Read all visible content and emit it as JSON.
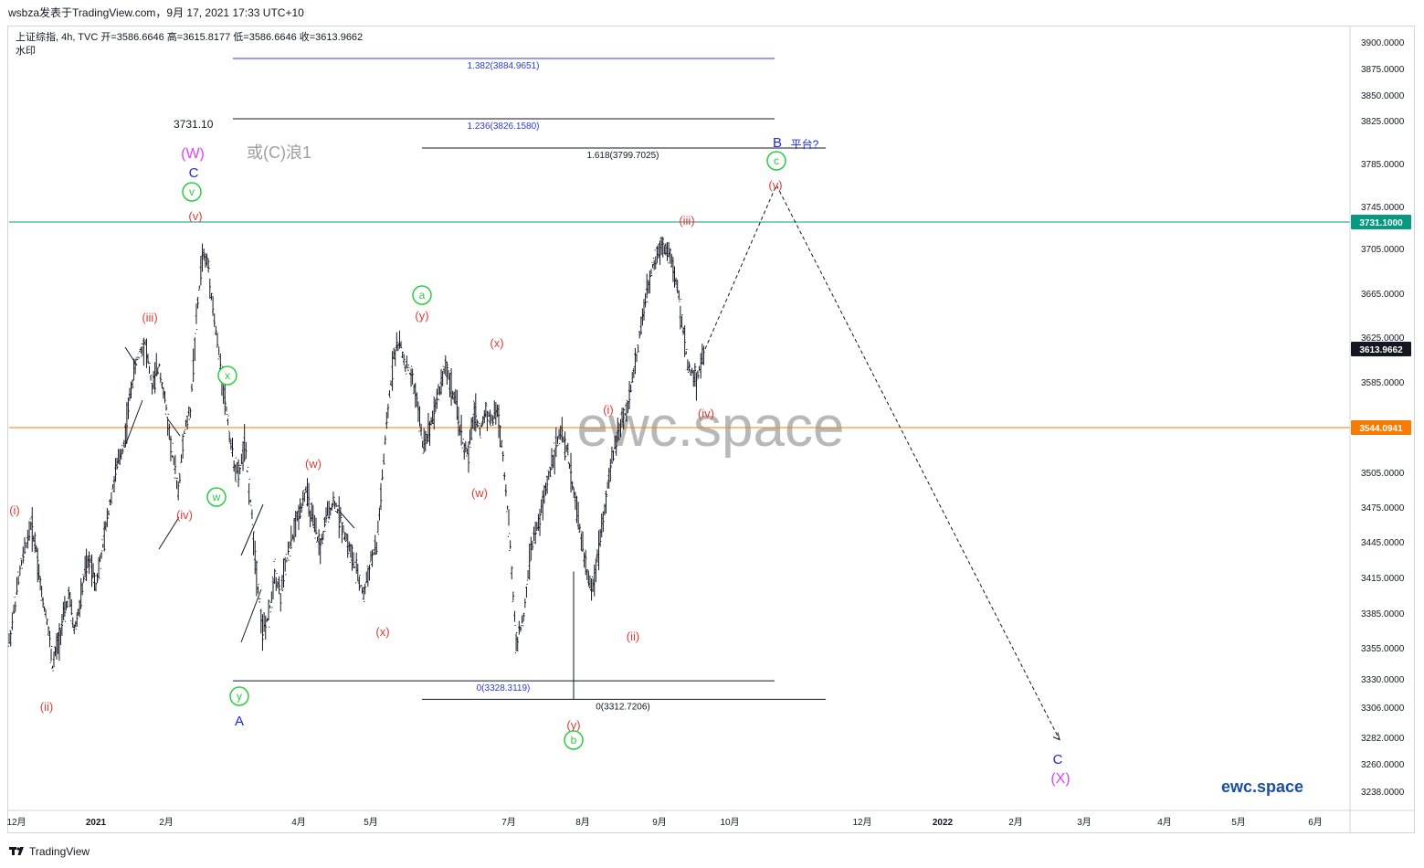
{
  "header": {
    "attribution": "wsbza发表于TradingView.com，9月 17, 2021 17:33 UTC+10"
  },
  "legend": {
    "symbol_line": "上证综指, 4h, TVC  开=3586.6646  高=3615.8177  低=3586.6646  收=3613.9662",
    "sub_line": "水印"
  },
  "watermark": "ewc.space",
  "brand_text": "ewc.space",
  "footer": {
    "logo_text": "TradingView"
  },
  "colors": {
    "candle": "#131722",
    "green_line": "#089981",
    "orange_line": "#f57c00",
    "fib_blue": "#2b3bd9",
    "wave_red": "#e53935",
    "wave_green": "#2ecc40",
    "wave_blue": "#1a2bd9",
    "wave_magenta": "#e040fb",
    "watermark": "#b8b8b8"
  },
  "chart_data": {
    "type": "candlestick",
    "symbol": "上证综指",
    "interval": "4h",
    "source": "TVC",
    "ylim": [
      3225,
      3915
    ],
    "y_ticks": [
      "3900.0000",
      "3875.0000",
      "3850.0000",
      "3825.0000",
      "3785.0000",
      "3745.0000",
      "3705.0000",
      "3665.0000",
      "3625.0000",
      "3585.0000",
      "3505.0000",
      "3475.0000",
      "3445.0000",
      "3415.0000",
      "3385.0000",
      "3355.0000",
      "3330.0000",
      "3306.0000",
      "3282.0000",
      "3260.0000",
      "3238.0000"
    ],
    "x_ticks": [
      "12月",
      "2021",
      "2月",
      "4月",
      "5月",
      "7月",
      "8月",
      "9月",
      "10月",
      "12月",
      "2022",
      "2月",
      "3月",
      "4月",
      "5月",
      "6月"
    ],
    "price_badges": [
      {
        "label": "3731.1000",
        "value": 3731.1,
        "color": "#089981"
      },
      {
        "label": "3613.9662",
        "value": 3613.9662,
        "color": "#131722"
      },
      {
        "label": "3544.0941",
        "value": 3544.0941,
        "color": "#f57c00"
      }
    ],
    "horizontal_levels": [
      {
        "value": 3731.1,
        "color": "#089981"
      },
      {
        "value": 3544.0941,
        "color": "#f57c00"
      }
    ],
    "fib_sets": [
      {
        "color": "#2b3bd9",
        "levels": [
          {
            "label": "1.382(3884.9651)",
            "value": 3884.9651
          },
          {
            "label": "1.236(3826.1580)",
            "value": 3826.158
          },
          {
            "label": "0(3328.3119)",
            "value": 3328.3119
          }
        ],
        "extra_label": "3731.10"
      },
      {
        "color": "#131722",
        "levels": [
          {
            "label": "1.618(3799.7025)",
            "value": 3799.7025
          },
          {
            "label": "0(3312.7206)",
            "value": 3312.7206
          }
        ]
      }
    ],
    "price_path": [
      [
        0,
        3360
      ],
      [
        2,
        3420
      ],
      [
        4,
        3460
      ],
      [
        5,
        3440
      ],
      [
        6,
        3400
      ],
      [
        7,
        3380
      ],
      [
        8,
        3340
      ],
      [
        9,
        3360
      ],
      [
        10,
        3380
      ],
      [
        11,
        3400
      ],
      [
        12,
        3370
      ],
      [
        13,
        3390
      ],
      [
        14,
        3420
      ],
      [
        15,
        3430
      ],
      [
        16,
        3410
      ],
      [
        17,
        3440
      ],
      [
        18,
        3480
      ],
      [
        19,
        3510
      ],
      [
        20,
        3530
      ],
      [
        21,
        3580
      ],
      [
        22,
        3610
      ],
      [
        23,
        3620
      ],
      [
        24,
        3580
      ],
      [
        25,
        3600
      ],
      [
        26,
        3560
      ],
      [
        27,
        3520
      ],
      [
        28,
        3490
      ],
      [
        29,
        3540
      ],
      [
        30,
        3560
      ],
      [
        31,
        3640
      ],
      [
        32,
        3700
      ],
      [
        33,
        3690
      ],
      [
        34,
        3640
      ],
      [
        35,
        3600
      ],
      [
        36,
        3560
      ],
      [
        37,
        3520
      ],
      [
        38,
        3500
      ],
      [
        39,
        3530
      ],
      [
        40,
        3480
      ],
      [
        41,
        3420
      ],
      [
        42,
        3370
      ],
      [
        43,
        3380
      ],
      [
        44,
        3420
      ],
      [
        45,
        3400
      ],
      [
        46,
        3430
      ],
      [
        47,
        3450
      ],
      [
        48,
        3470
      ],
      [
        49,
        3490
      ],
      [
        50,
        3460
      ],
      [
        51,
        3440
      ],
      [
        52,
        3470
      ],
      [
        53,
        3480
      ],
      [
        54,
        3460
      ],
      [
        55,
        3440
      ],
      [
        56,
        3420
      ],
      [
        57,
        3400
      ],
      [
        58,
        3430
      ],
      [
        59,
        3440
      ],
      [
        60,
        3500
      ],
      [
        61,
        3560
      ],
      [
        62,
        3610
      ],
      [
        63,
        3620
      ],
      [
        64,
        3600
      ],
      [
        65,
        3590
      ],
      [
        66,
        3570
      ],
      [
        67,
        3530
      ],
      [
        68,
        3540
      ],
      [
        69,
        3560
      ],
      [
        70,
        3580
      ],
      [
        71,
        3600
      ],
      [
        72,
        3580
      ],
      [
        73,
        3560
      ],
      [
        74,
        3530
      ],
      [
        75,
        3520
      ],
      [
        76,
        3560
      ],
      [
        77,
        3540
      ],
      [
        78,
        3560
      ],
      [
        79,
        3550
      ],
      [
        80,
        3560
      ],
      [
        81,
        3520
      ],
      [
        82,
        3460
      ],
      [
        83,
        3360
      ],
      [
        84,
        3380
      ],
      [
        85,
        3440
      ],
      [
        86,
        3460
      ],
      [
        87,
        3490
      ],
      [
        88,
        3520
      ],
      [
        89,
        3540
      ],
      [
        90,
        3520
      ],
      [
        91,
        3480
      ],
      [
        92,
        3440
      ],
      [
        93,
        3400
      ],
      [
        94,
        3450
      ],
      [
        95,
        3500
      ],
      [
        96,
        3540
      ],
      [
        97,
        3560
      ],
      [
        98,
        3600
      ],
      [
        99,
        3650
      ],
      [
        100,
        3690
      ],
      [
        101,
        3710
      ],
      [
        102,
        3700
      ],
      [
        103,
        3660
      ],
      [
        104,
        3600
      ],
      [
        105,
        3588
      ],
      [
        106,
        3614
      ]
    ],
    "projection": [
      [
        106,
        3614
      ],
      [
        121,
        3765
      ],
      [
        160,
        3280
      ]
    ],
    "wave_labels": [
      {
        "text": "(i)",
        "color": "#e53935"
      },
      {
        "text": "(ii)",
        "color": "#e53935"
      },
      {
        "text": "(iii)",
        "color": "#e53935"
      },
      {
        "text": "(iv)",
        "color": "#e53935"
      },
      {
        "text": "(v)",
        "color": "#e53935"
      },
      {
        "text": "v",
        "color": "#2ecc40",
        "circled": true
      },
      {
        "text": "C",
        "color": "#1a2bd9"
      },
      {
        "text": "(W)",
        "color": "#e040fb"
      },
      {
        "text": "或(C)浪1",
        "color": "#9e9e9e"
      },
      {
        "text": "x",
        "color": "#2ecc40",
        "circled": true
      },
      {
        "text": "w",
        "color": "#2ecc40",
        "circled": true
      },
      {
        "text": "y",
        "color": "#2ecc40",
        "circled": true
      },
      {
        "text": "A",
        "color": "#1a2bd9"
      },
      {
        "text": "(w)",
        "color": "#e53935"
      },
      {
        "text": "(x)",
        "color": "#e53935"
      },
      {
        "text": "a",
        "color": "#2ecc40",
        "circled": true
      },
      {
        "text": "(y)",
        "color": "#e53935"
      },
      {
        "text": "(x)",
        "color": "#e53935"
      },
      {
        "text": "(w)",
        "color": "#e53935"
      },
      {
        "text": "(y)",
        "color": "#e53935"
      },
      {
        "text": "b",
        "color": "#2ecc40",
        "circled": true
      },
      {
        "text": "(i)",
        "color": "#e53935"
      },
      {
        "text": "(ii)",
        "color": "#e53935"
      },
      {
        "text": "(iii)",
        "color": "#e53935"
      },
      {
        "text": "(iv)",
        "color": "#e53935"
      },
      {
        "text": "(v)",
        "color": "#e53935"
      },
      {
        "text": "c",
        "color": "#2ecc40",
        "circled": true
      },
      {
        "text": "B",
        "color": "#1a2bd9"
      },
      {
        "text": "平台?",
        "color": "#1a2bd9"
      },
      {
        "text": "C",
        "color": "#1a2bd9"
      },
      {
        "text": "(X)",
        "color": "#e040fb"
      }
    ]
  }
}
